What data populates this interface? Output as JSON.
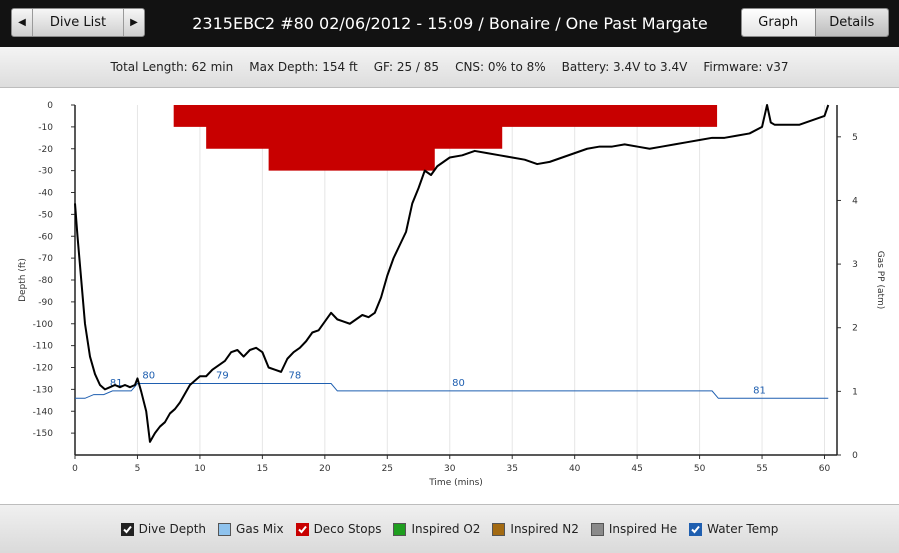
{
  "nav": {
    "back_label": "Dive List"
  },
  "header": {
    "title": "2315EBC2 #80 02/06/2012 - 15:09  / Bonaire / One Past Margate"
  },
  "view_tabs": [
    {
      "label": "Graph",
      "selected": true
    },
    {
      "label": "Details",
      "selected": false
    }
  ],
  "summary": {
    "total_length": "Total Length: 62 min",
    "max_depth": "Max Depth: 154 ft",
    "gf": "GF: 25 / 85",
    "cns": "CNS: 0% to 8%",
    "battery": "Battery: 3.4V to 3.4V",
    "firmware": "Firmware: v37"
  },
  "legend": [
    {
      "label": "Dive Depth",
      "checked": true,
      "color": "#222222"
    },
    {
      "label": "Gas Mix",
      "checked": false,
      "color": "#8fc3ee"
    },
    {
      "label": "Deco Stops",
      "checked": true,
      "color": "#c80000"
    },
    {
      "label": "Inspired O2",
      "checked": false,
      "color": "#1f9e1f"
    },
    {
      "label": "Inspired N2",
      "checked": false,
      "color": "#a36a12"
    },
    {
      "label": "Inspired He",
      "checked": false,
      "color": "#8a8a8a"
    },
    {
      "label": "Water Temp",
      "checked": true,
      "color": "#1f5fb0"
    }
  ],
  "chart_data": {
    "type": "line",
    "xlabel": "Time (mins)",
    "ylabel": "Depth (ft)",
    "y2label": "Gas PP (atm)",
    "xlim": [
      0,
      61
    ],
    "ylim": [
      -160,
      0
    ],
    "y2lim": [
      0,
      5.5
    ],
    "x_ticks": [
      0,
      5,
      10,
      15,
      20,
      25,
      30,
      35,
      40,
      45,
      50,
      55,
      60
    ],
    "y_ticks": [
      0,
      -10,
      -20,
      -30,
      -40,
      -50,
      -60,
      -70,
      -80,
      -90,
      -100,
      -110,
      -120,
      -130,
      -140,
      -150
    ],
    "y2_ticks": [
      0,
      1,
      2,
      3,
      4,
      5
    ],
    "grid": true,
    "depth_color": "#000000",
    "temp_color": "#1f5fb0",
    "deco_color": "#c80000",
    "series": [
      {
        "role": "depth",
        "x": [
          0,
          0.2,
          0.5,
          0.8,
          1.2,
          1.6,
          2.0,
          2.4,
          2.8,
          3.2,
          3.6,
          4.0,
          4.4,
          4.8,
          5.0,
          5.3,
          5.7,
          6.0,
          6.4,
          6.8,
          7.2,
          7.6,
          8.0,
          8.4,
          8.8,
          9.2,
          9.6,
          10.0,
          10.5,
          11.0,
          11.5,
          12.0,
          12.5,
          13.0,
          13.5,
          14.0,
          14.5,
          15.0,
          15.5,
          16.0,
          16.5,
          17.0,
          17.5,
          18.0,
          18.5,
          19.0,
          19.5,
          20.0,
          20.5,
          21.0,
          21.5,
          22.0,
          22.5,
          23.0,
          23.5,
          24.0,
          24.5,
          25.0,
          25.5,
          26.0,
          26.5,
          27.0,
          27.5,
          28.0,
          28.5,
          29.0,
          29.5,
          30.0,
          31.0,
          32.0,
          33.0,
          34.0,
          35.0,
          36.0,
          37.0,
          38.0,
          39.0,
          40.0,
          41.0,
          42.0,
          43.0,
          44.0,
          45.0,
          46.0,
          47.0,
          48.0,
          49.0,
          50.0,
          51.0,
          52.0,
          53.0,
          54.0,
          55.0,
          55.2,
          55.4,
          55.7,
          56.0,
          57.0,
          58.0,
          59.0,
          60.0,
          60.3
        ],
        "values": [
          -45,
          -60,
          -80,
          -100,
          -115,
          -123,
          -128,
          -130,
          -129,
          -128,
          -129,
          -128,
          -129,
          -128,
          -125,
          -131,
          -140,
          -154,
          -150,
          -147,
          -145,
          -141,
          -139,
          -136,
          -132,
          -128,
          -126,
          -124,
          -124,
          -121,
          -119,
          -117,
          -113,
          -112,
          -115,
          -112,
          -111,
          -113,
          -120,
          -121,
          -122,
          -116,
          -113,
          -111,
          -108,
          -104,
          -103,
          -99,
          -95,
          -98,
          -99,
          -100,
          -98,
          -96,
          -97,
          -95,
          -88,
          -78,
          -70,
          -64,
          -58,
          -45,
          -38,
          -30,
          -32,
          -28,
          -26,
          -24,
          -23,
          -21,
          -22,
          -23,
          -24,
          -25,
          -27,
          -26,
          -24,
          -22,
          -20,
          -19,
          -19,
          -18,
          -19,
          -20,
          -19,
          -18,
          -17,
          -16,
          -15,
          -15,
          -14,
          -13,
          -10,
          -5,
          0,
          -8,
          -9,
          -9,
          -9,
          -7,
          -5,
          0
        ]
      },
      {
        "role": "deco_stops",
        "x": [
          7.9,
          10.5,
          10.5,
          15.5,
          15.5,
          28.8,
          28.8,
          34.2,
          34.2,
          51.4
        ],
        "values": [
          -10,
          -10,
          -20,
          -20,
          -30,
          -30,
          -20,
          -20,
          -10,
          -10
        ]
      },
      {
        "role": "water_temp",
        "x": [
          0,
          0.8,
          1.5,
          2.3,
          3.0,
          4.5,
          5.0,
          6.0,
          20.5,
          21.0,
          51.0,
          51.5,
          60.3
        ],
        "values": [
          81,
          81,
          80.5,
          80.5,
          80,
          80,
          79,
          79,
          79,
          80,
          80,
          81,
          81
        ],
        "labels": [
          {
            "x": 3.3,
            "text": "81"
          },
          {
            "x": 5.9,
            "text": "80"
          },
          {
            "x": 11.8,
            "text": "79"
          },
          {
            "x": 17.6,
            "text": "78"
          },
          {
            "x": 30.7,
            "text": "80"
          },
          {
            "x": 54.8,
            "text": "81"
          }
        ]
      }
    ]
  }
}
